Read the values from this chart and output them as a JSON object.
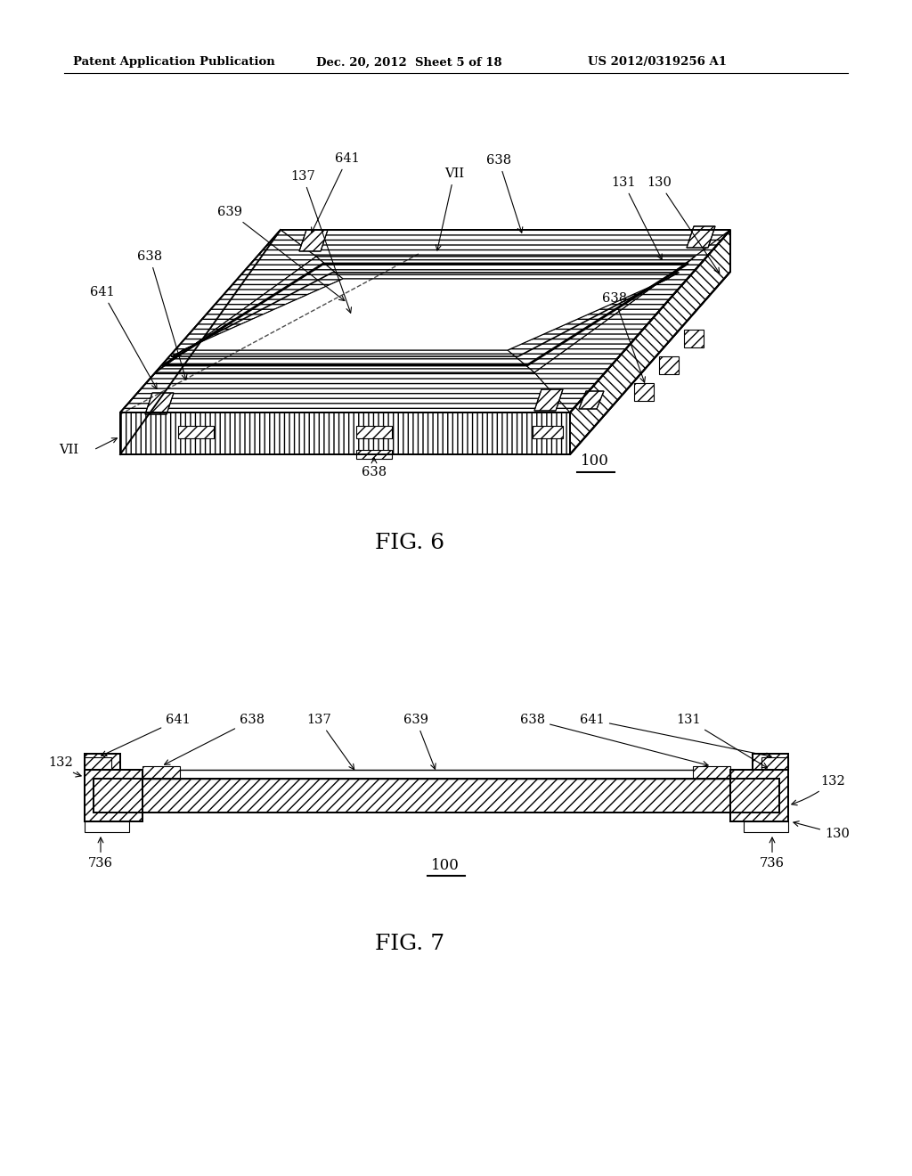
{
  "bg_color": "#ffffff",
  "header_left": "Patent Application Publication",
  "header_mid": "Dec. 20, 2012  Sheet 5 of 18",
  "header_right": "US 2012/0319256 A1",
  "fig6_label": "FIG. 6",
  "fig7_label": "FIG. 7"
}
